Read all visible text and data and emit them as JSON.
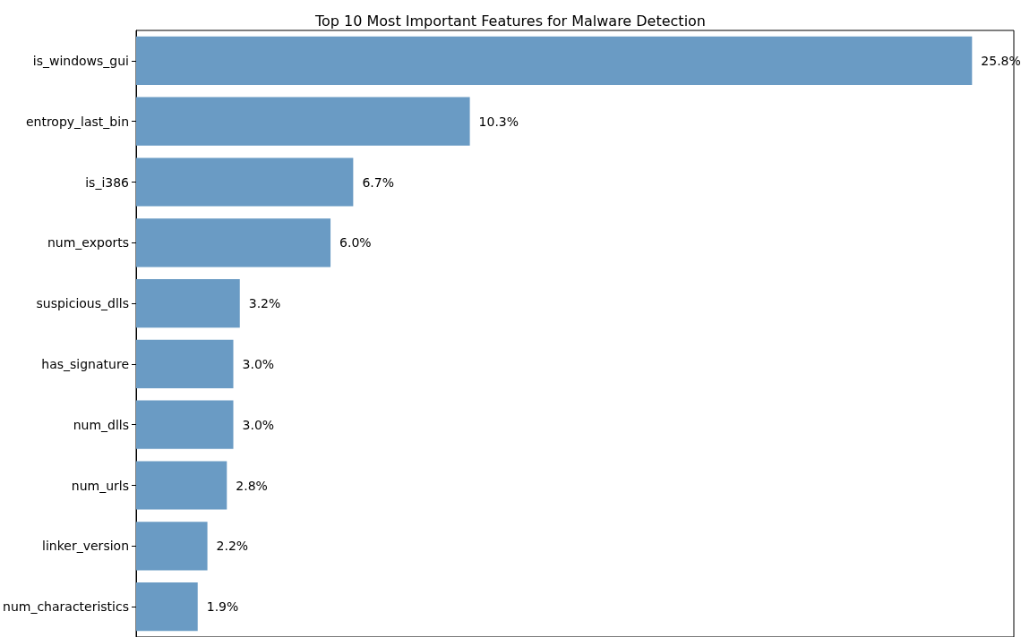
{
  "chart_data": {
    "type": "bar",
    "orientation": "horizontal",
    "title": "Top 10 Most Important Features for Malware Detection",
    "categories": [
      "is_windows_gui",
      "entropy_last_bin",
      "is_i386",
      "num_exports",
      "suspicious_dlls",
      "has_signature",
      "num_dlls",
      "num_urls",
      "linker_version",
      "num_characteristics"
    ],
    "values": [
      25.8,
      10.3,
      6.7,
      6.0,
      3.2,
      3.0,
      3.0,
      2.8,
      2.2,
      1.9
    ],
    "value_labels": [
      "25.8%",
      "10.3%",
      "6.7%",
      "6.0%",
      "3.2%",
      "3.0%",
      "3.0%",
      "2.8%",
      "2.2%",
      "1.9%"
    ],
    "color": "#6a9bc4",
    "xlim": [
      0,
      27.09
    ],
    "tick_labels": "y"
  }
}
